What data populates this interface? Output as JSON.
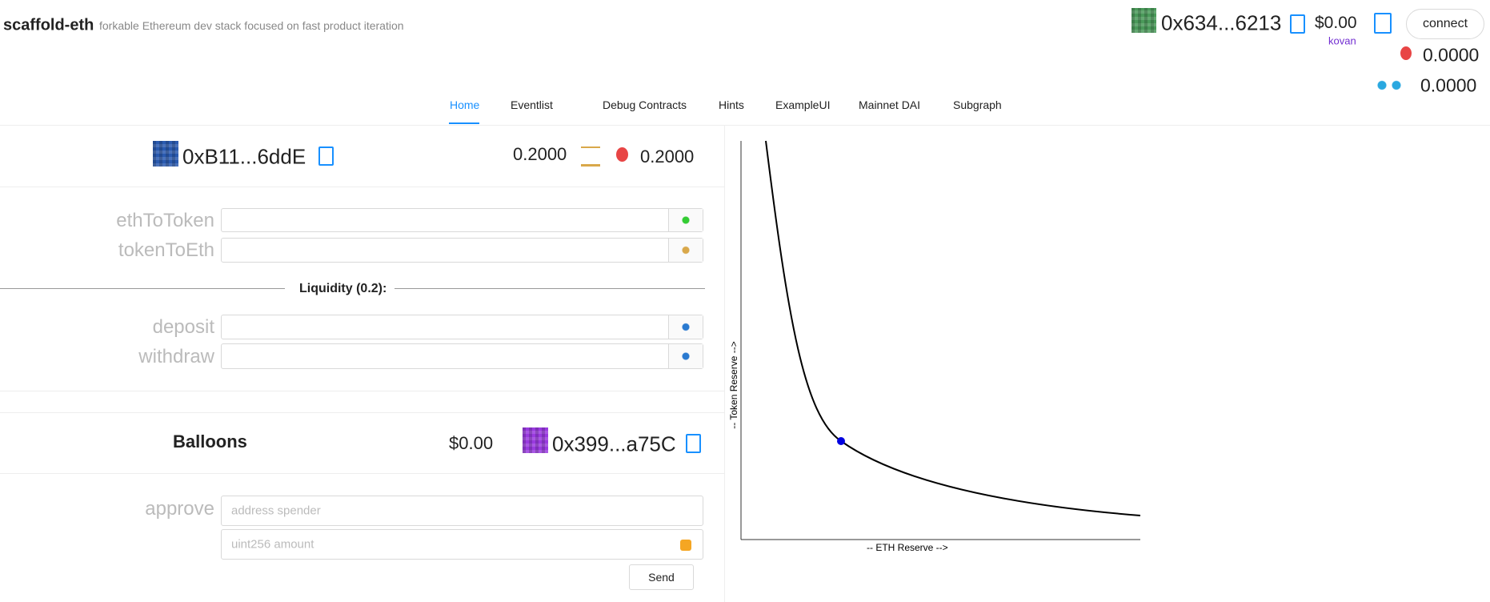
{
  "header": {
    "title": "scaffold-eth",
    "subtitle": "forkable Ethereum dev stack focused on fast product iteration"
  },
  "account": {
    "address": "0x634...6213",
    "balance": "$0.00",
    "network": "kovan",
    "connect": "connect",
    "token_balance": "0.0000",
    "faucet_balance": "0.0000"
  },
  "tabs": [
    "Home",
    "Eventlist",
    "Debug Contracts",
    "Hints",
    "ExampleUI",
    "Mainnet DAI",
    "Subgraph"
  ],
  "dex": {
    "address": "0xB11...6ddE",
    "eth_balance": "0.2000",
    "token_balance": "0.2000",
    "swap_fields": [
      "ethToToken",
      "tokenToEth"
    ],
    "liquidity": "Liquidity (0.2):",
    "liquidity_fields": [
      "deposit",
      "withdraw"
    ]
  },
  "token": {
    "name": "Balloons",
    "balance": "$0.00",
    "address": "0x399...a75C",
    "approve": {
      "label": "approve",
      "placeholders": [
        "address spender",
        "uint256 amount"
      ],
      "send": "Send"
    }
  },
  "curve": {
    "x_label": "-- ETH Reserve -->",
    "y_label": "-- Token Reserve -->"
  }
}
